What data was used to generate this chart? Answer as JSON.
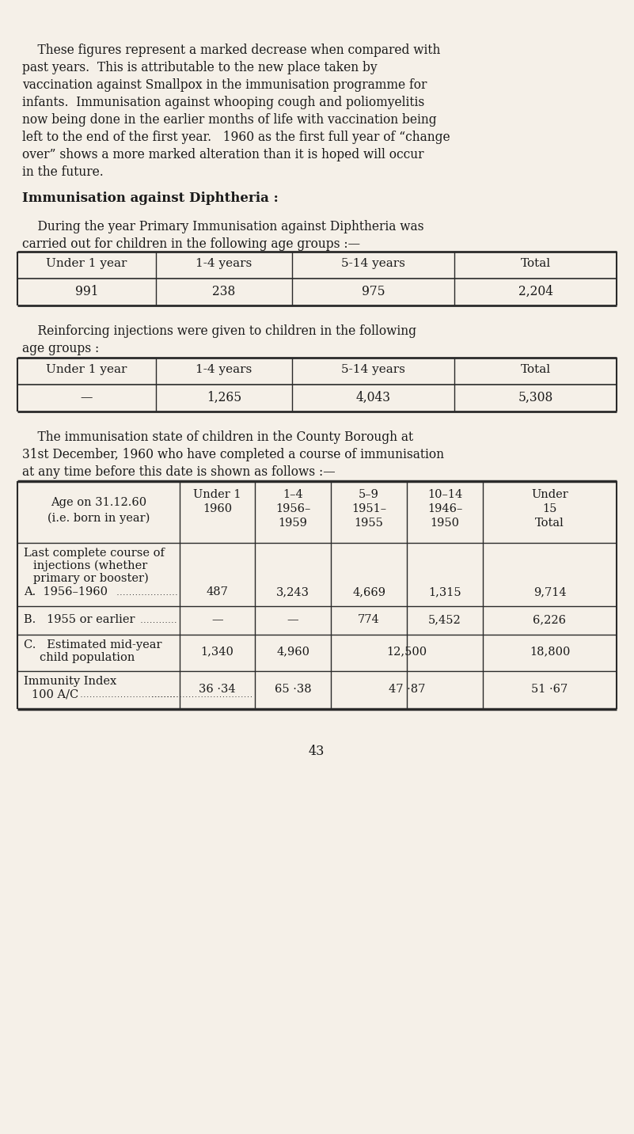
{
  "bg_color": "#f5f0e8",
  "text_color": "#1a1a1a",
  "page_number": "43",
  "table1_headers": [
    "Under 1 year",
    "1-4 years",
    "5-14 years",
    "Total"
  ],
  "table1_values": [
    "991",
    "238",
    "975",
    "2,204"
  ],
  "table2_headers": [
    "Under 1 year",
    "1-4 years",
    "5-14 years",
    "Total"
  ],
  "table2_values": [
    "—",
    "1,265",
    "4,043",
    "5,308"
  ],
  "table3_row1_values": [
    "487",
    "3,243",
    "4,669",
    "1,315",
    "9,714"
  ],
  "table3_row2_values": [
    "—",
    "—",
    "774",
    "5,452",
    "6,226"
  ]
}
